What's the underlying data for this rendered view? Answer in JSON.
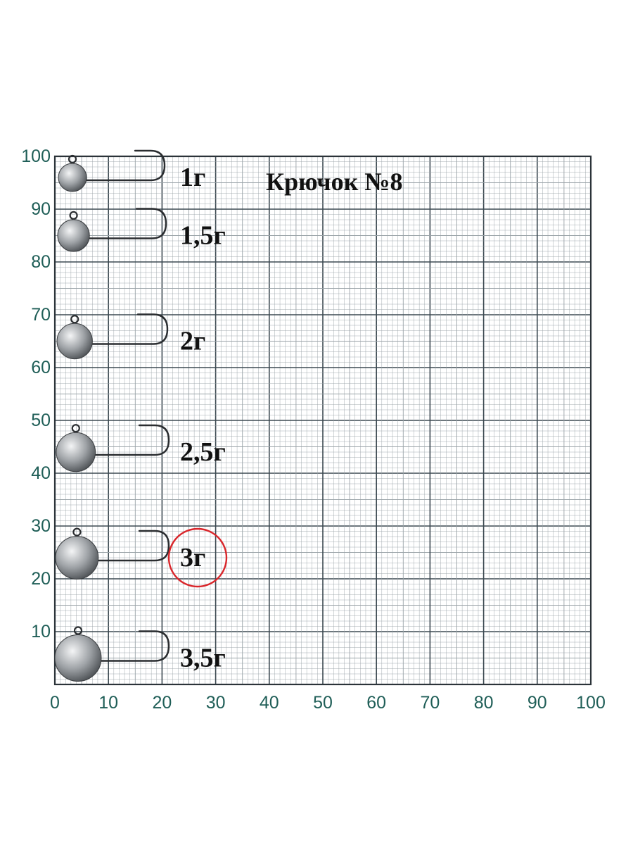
{
  "title": "Крючок №8",
  "x_ticks": [
    "0",
    "10",
    "20",
    "30",
    "40",
    "50",
    "60",
    "70",
    "80",
    "90",
    "100"
  ],
  "y_ticks": [
    "100",
    "90",
    "80",
    "70",
    "60",
    "50",
    "40",
    "30",
    "20",
    "10"
  ],
  "jigs": [
    {
      "label": "1г",
      "head_y": 96
    },
    {
      "label": "1,5г",
      "head_y": 85
    },
    {
      "label": "2г",
      "head_y": 65
    },
    {
      "label": "2,5г",
      "head_y": 44
    },
    {
      "label": "3г",
      "head_y": 24,
      "highlighted": true
    },
    {
      "label": "3,5г",
      "head_y": 5
    }
  ],
  "colors": {
    "grid_minor": "#9aa3a8",
    "grid_major": "#3d4a52",
    "axis_text": "#1f5e57",
    "highlight": "#d9262b",
    "lead": "#8d9094"
  }
}
